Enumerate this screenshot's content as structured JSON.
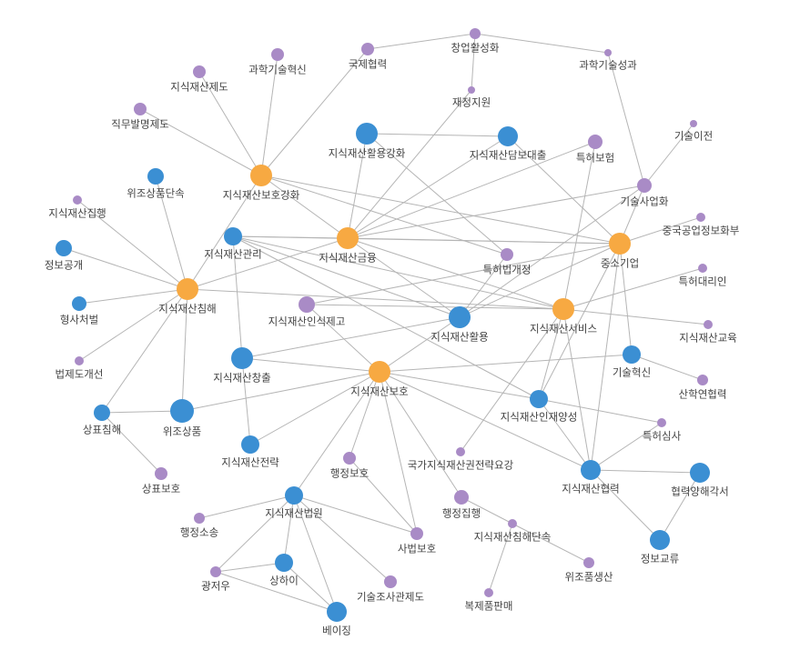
{
  "nodes": [
    {
      "label": "창업활성화"
    },
    {
      "label": "국제협력"
    },
    {
      "label": "과학기술성과"
    },
    {
      "label": "과학기술혁신"
    },
    {
      "label": "지식재산제도"
    },
    {
      "label": "재정지원"
    },
    {
      "label": "직무발명제도"
    },
    {
      "label": "기술이전"
    },
    {
      "label": "지식재산활용강화"
    },
    {
      "label": "지식재산담보대출"
    },
    {
      "label": "특허보험"
    },
    {
      "label": "위조상품단속"
    },
    {
      "label": "지식재산보호강화"
    },
    {
      "label": "기술사업화"
    },
    {
      "label": "지식재산집행"
    },
    {
      "label": "중국공업정보화부"
    },
    {
      "label": "지식재산관리"
    },
    {
      "label": "지식재산금융"
    },
    {
      "label": "중소기업"
    },
    {
      "label": "정보공개"
    },
    {
      "label": "특허법개정"
    },
    {
      "label": "특허대리인"
    },
    {
      "label": "지식재산침해"
    },
    {
      "label": "지식재산인식제고"
    },
    {
      "label": "지식재산서비스"
    },
    {
      "label": "지식재산활용"
    },
    {
      "label": "형사처벌"
    },
    {
      "label": "지식재산교육"
    },
    {
      "label": "법제도개선"
    },
    {
      "label": "지식재산창출"
    },
    {
      "label": "기술혁신"
    },
    {
      "label": "지식재산보호"
    },
    {
      "label": "산학연협력"
    },
    {
      "label": "지식재산인재양성"
    },
    {
      "label": "상표침해"
    },
    {
      "label": "위조상품"
    },
    {
      "label": "특허심사"
    },
    {
      "label": "지식재산전략"
    },
    {
      "label": "국가지식재산권전략요강"
    },
    {
      "label": "행정보호"
    },
    {
      "label": "지식재산협력"
    },
    {
      "label": "협력양해각서"
    },
    {
      "label": "상표보호"
    },
    {
      "label": "행정집행"
    },
    {
      "label": "지식재산법원"
    },
    {
      "label": "지식재산침해단속"
    },
    {
      "label": "행정소송"
    },
    {
      "label": "사법보호"
    },
    {
      "label": "정보교류"
    },
    {
      "label": "상하이"
    },
    {
      "label": "위조품생산"
    },
    {
      "label": "광저우"
    },
    {
      "label": "기술조사관제도"
    },
    {
      "label": "복제품판매"
    },
    {
      "label": "베이징"
    }
  ]
}
